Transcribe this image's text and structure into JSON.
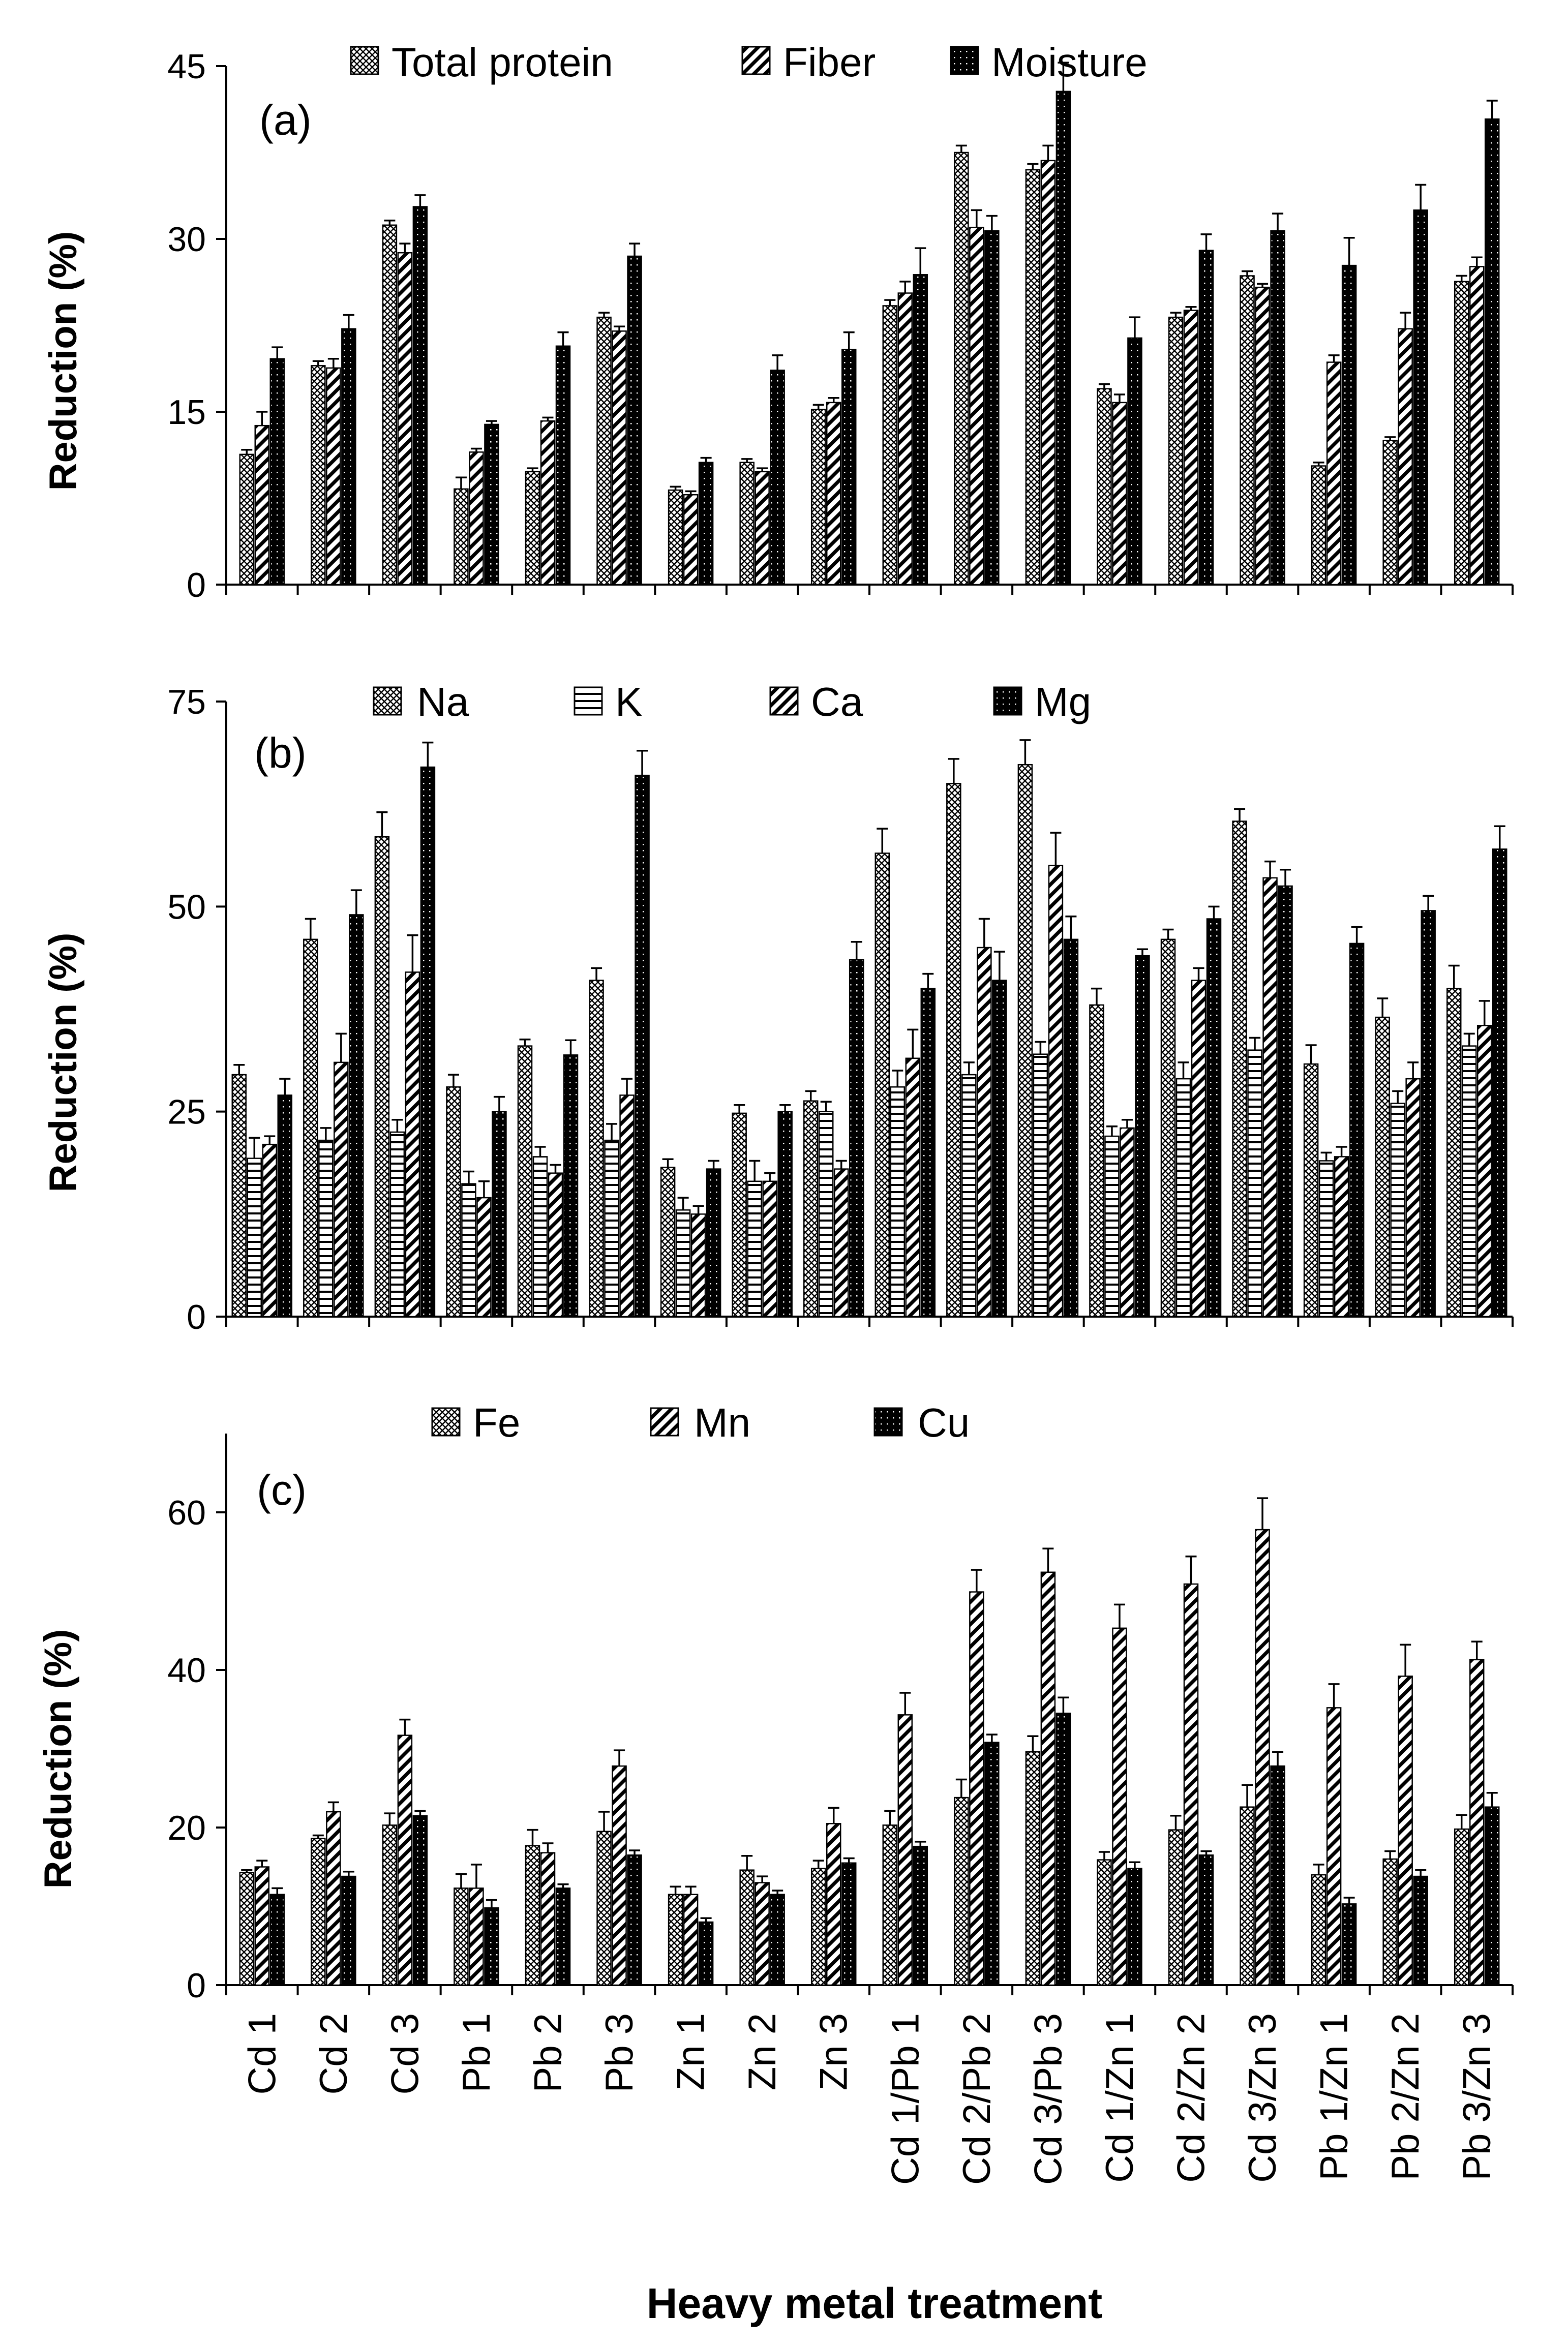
{
  "chart_data": [
    {
      "id": "a",
      "type": "bar",
      "panel_label": "(a)",
      "ylabel": "Reduction (%)",
      "ylim": [
        0,
        45
      ],
      "yticks": [
        0,
        15,
        30,
        45
      ],
      "categories": [
        "Cd 1",
        "Cd 2",
        "Cd 3",
        "Pb 1",
        "Pb 2",
        "Pb 3",
        "Zn 1",
        "Zn 2",
        "Zn 3",
        "Cd 1/Pb 1",
        "Cd 2/Pb 2",
        "Cd 3/Pb 3",
        "Cd 1/Zn 1",
        "Cd 2/Zn 2",
        "Cd 3/Zn 3",
        "Pb 1/Zn 1",
        "Pb 2/Zn 2",
        "Pb 3/Zn 3"
      ],
      "series": [
        {
          "name": "Total protein",
          "pattern": "check",
          "values": [
            11.3,
            19.0,
            31.2,
            8.3,
            9.8,
            23.2,
            8.2,
            10.6,
            15.2,
            24.2,
            37.5,
            36.0,
            17.0,
            23.2,
            26.8,
            10.3,
            12.5,
            26.3
          ],
          "errors": [
            0.4,
            0.4,
            0.4,
            1.0,
            0.3,
            0.4,
            0.3,
            0.3,
            0.4,
            0.5,
            0.6,
            0.5,
            0.4,
            0.4,
            0.4,
            0.3,
            0.3,
            0.5
          ]
        },
        {
          "name": "Fiber",
          "pattern": "diag",
          "values": [
            13.8,
            18.8,
            28.8,
            11.5,
            14.2,
            22.0,
            7.8,
            9.8,
            15.8,
            25.3,
            31.0,
            36.8,
            15.8,
            23.8,
            25.8,
            19.3,
            22.2,
            27.6
          ],
          "errors": [
            1.2,
            0.8,
            0.8,
            0.3,
            0.3,
            0.4,
            0.3,
            0.3,
            0.4,
            1.0,
            1.5,
            1.3,
            0.7,
            0.3,
            0.3,
            0.6,
            1.4,
            0.8
          ]
        },
        {
          "name": "Moisture",
          "pattern": "solid",
          "values": [
            19.6,
            22.2,
            32.8,
            13.9,
            20.7,
            28.5,
            10.6,
            18.6,
            20.4,
            26.9,
            30.7,
            42.8,
            21.4,
            29.0,
            30.7,
            27.7,
            32.5,
            40.4
          ],
          "errors": [
            1.0,
            1.2,
            1.0,
            0.3,
            1.2,
            1.1,
            0.4,
            1.3,
            1.5,
            2.3,
            1.3,
            2.5,
            1.8,
            1.4,
            1.5,
            2.4,
            2.2,
            1.6
          ]
        }
      ]
    },
    {
      "id": "b",
      "type": "bar",
      "panel_label": "(b)",
      "ylabel": "Reduction (%)",
      "ylim": [
        0,
        75
      ],
      "yticks": [
        0,
        25,
        50,
        75
      ],
      "categories": [
        "Cd 1",
        "Cd 2",
        "Cd 3",
        "Pb 1",
        "Pb 2",
        "Pb 3",
        "Zn 1",
        "Zn 2",
        "Zn 3",
        "Cd 1/Pb 1",
        "Cd 2/Pb 2",
        "Cd 3/Pb 3",
        "Cd 1/Zn 1",
        "Cd 2/Zn 2",
        "Cd 3/Zn 3",
        "Pb 1/Zn 1",
        "Pb 2/Zn 2",
        "Pb 3/Zn 3"
      ],
      "series": [
        {
          "name": "Na",
          "pattern": "check",
          "values": [
            29.5,
            46.0,
            58.5,
            28.0,
            33.0,
            41.0,
            18.2,
            24.8,
            26.3,
            56.5,
            65.0,
            67.3,
            38.0,
            46.0,
            60.4,
            30.8,
            36.5,
            40.0
          ],
          "errors": [
            1.2,
            2.5,
            3.0,
            1.5,
            0.8,
            1.5,
            1.0,
            1.0,
            1.2,
            3.0,
            3.0,
            3.0,
            2.0,
            1.2,
            1.5,
            2.3,
            2.3,
            2.8
          ]
        },
        {
          "name": "K",
          "pattern": "hstripe",
          "values": [
            19.3,
            21.5,
            22.5,
            16.2,
            19.5,
            21.5,
            13.0,
            16.5,
            25.0,
            28.0,
            29.5,
            32.0,
            22.0,
            29.0,
            32.5,
            19.0,
            26.0,
            33.0
          ],
          "errors": [
            2.5,
            1.5,
            1.5,
            1.5,
            1.2,
            2.0,
            1.5,
            2.5,
            1.2,
            2.0,
            1.5,
            1.5,
            1.2,
            2.0,
            1.5,
            1.0,
            1.5,
            1.5
          ]
        },
        {
          "name": "Ca",
          "pattern": "diag",
          "values": [
            21.0,
            31.0,
            42.0,
            14.5,
            17.5,
            27.0,
            12.5,
            16.5,
            18.0,
            31.5,
            45.0,
            55.0,
            23.0,
            41.0,
            53.5,
            19.5,
            29.0,
            35.5
          ],
          "errors": [
            1.0,
            3.5,
            4.5,
            2.0,
            1.0,
            2.0,
            1.0,
            1.0,
            1.0,
            3.5,
            3.5,
            4.0,
            1.0,
            1.5,
            2.0,
            1.2,
            2.0,
            3.0
          ]
        },
        {
          "name": "Mg",
          "pattern": "solid",
          "values": [
            27.0,
            49.0,
            67.0,
            25.0,
            31.9,
            66.0,
            18.0,
            25.0,
            43.5,
            40.0,
            41.0,
            46.0,
            44.0,
            48.5,
            52.5,
            45.5,
            49.5,
            57.0
          ],
          "errors": [
            2.0,
            3.0,
            3.0,
            1.8,
            1.8,
            3.0,
            1.0,
            0.8,
            2.2,
            1.8,
            3.5,
            2.8,
            0.8,
            1.5,
            2.0,
            2.0,
            1.8,
            2.8
          ]
        }
      ]
    },
    {
      "id": "c",
      "type": "bar",
      "panel_label": "(c)",
      "ylabel": "Reduction (%)",
      "ylim": [
        0,
        70
      ],
      "yticks": [
        0,
        20,
        40,
        60
      ],
      "xlabel": "Heavy metal treatment",
      "categories": [
        "Cd 1",
        "Cd 2",
        "Cd 3",
        "Pb 1",
        "Pb 2",
        "Pb 3",
        "Zn 1",
        "Zn 2",
        "Zn 3",
        "Cd 1/Pb 1",
        "Cd 2/Pb 2",
        "Cd 3/Pb 3",
        "Cd 1/Zn 1",
        "Cd 2/Zn 2",
        "Cd 3/Zn 3",
        "Pb 1/Zn 1",
        "Pb 2/Zn 2",
        "Pb 3/Zn 3"
      ],
      "series": [
        {
          "name": "Fe",
          "pattern": "check",
          "values": [
            14.3,
            18.6,
            20.3,
            12.3,
            17.7,
            19.5,
            11.5,
            14.6,
            14.8,
            20.3,
            23.8,
            29.6,
            15.9,
            19.7,
            22.6,
            14.0,
            16.0,
            19.8
          ],
          "errors": [
            0.3,
            0.4,
            1.5,
            1.8,
            2.0,
            2.5,
            1.0,
            1.8,
            1.0,
            1.8,
            2.3,
            2.0,
            1.0,
            1.8,
            2.8,
            1.3,
            1.0,
            1.8
          ]
        },
        {
          "name": "Mn",
          "pattern": "diag",
          "values": [
            15.0,
            22.0,
            31.7,
            12.3,
            16.8,
            27.8,
            11.5,
            13.0,
            20.5,
            34.3,
            49.9,
            52.4,
            45.3,
            50.9,
            57.8,
            35.2,
            39.2,
            41.3
          ],
          "errors": [
            0.8,
            1.2,
            2.0,
            3.0,
            1.2,
            2.0,
            1.0,
            0.8,
            2.0,
            2.8,
            2.8,
            3.0,
            3.0,
            3.5,
            4.0,
            3.0,
            4.0,
            2.3
          ]
        },
        {
          "name": "Cu",
          "pattern": "solid",
          "values": [
            11.5,
            13.8,
            21.5,
            9.8,
            12.3,
            16.5,
            8.0,
            11.5,
            15.5,
            17.6,
            30.8,
            34.5,
            14.8,
            16.5,
            27.8,
            10.3,
            13.8,
            22.6
          ],
          "errors": [
            0.8,
            0.6,
            0.6,
            1.0,
            0.5,
            0.6,
            0.5,
            0.5,
            0.6,
            0.6,
            1.0,
            2.0,
            0.8,
            0.5,
            1.8,
            0.8,
            0.8,
            1.8
          ]
        }
      ]
    }
  ]
}
